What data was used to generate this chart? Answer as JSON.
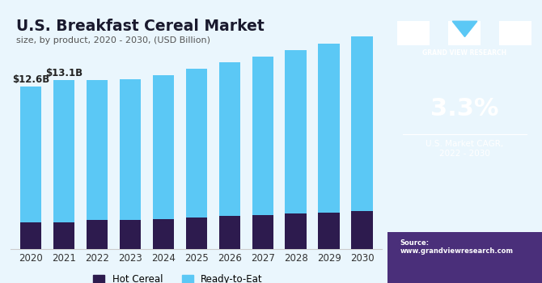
{
  "title": "U.S. Breakfast Cereal Market",
  "subtitle": "size, by product, 2020 - 2030, (USD Billion)",
  "years": [
    2020,
    2021,
    2022,
    2023,
    2024,
    2025,
    2026,
    2027,
    2028,
    2029,
    2030
  ],
  "hot_cereal": [
    2.1,
    2.1,
    2.25,
    2.25,
    2.35,
    2.45,
    2.55,
    2.65,
    2.75,
    2.85,
    2.95
  ],
  "ready_to_eat": [
    10.5,
    11.0,
    10.85,
    10.95,
    11.15,
    11.55,
    11.95,
    12.25,
    12.65,
    13.05,
    13.55
  ],
  "hot_cereal_color": "#2d1b4e",
  "rte_color": "#5bc8f5",
  "bg_color": "#eaf6fd",
  "panel_bg": "#3b1f6e",
  "bar_annotations": {
    "2020": "$12.6B",
    "2021": "$13.1B"
  },
  "legend_labels": [
    "Hot Cereal",
    "Ready-to-Eat"
  ],
  "cagr_text": "3.3%",
  "cagr_label": "U.S. Market CAGR,\n2022 - 2030",
  "source_text": "Source:\nwww.grandviewresearch.com",
  "brand_text": "GRAND VIEW RESEARCH"
}
